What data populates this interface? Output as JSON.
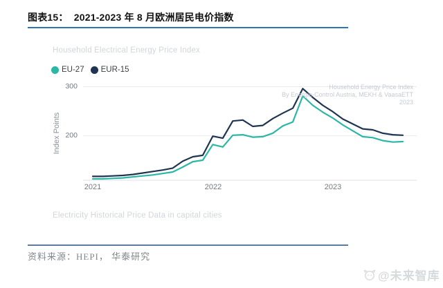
{
  "header": {
    "title": "图表15：  2021-2023 年 8 月欧洲居民电价指数"
  },
  "chart": {
    "title": "Household Electrical Energy Price Index",
    "caption": "Electricity Historical Price Data in capital cities",
    "watermark": {
      "line1": "Household Energy Price Index",
      "line2": "By Energie-Control Austria, MEKH & VaasaETT",
      "line3": "2023"
    }
  },
  "chart_data": {
    "type": "line",
    "title": "Household Electrical Energy Price Index",
    "xlabel": "",
    "ylabel": "Index Points",
    "x": [
      "2021-01",
      "2021-02",
      "2021-03",
      "2021-04",
      "2021-05",
      "2021-06",
      "2021-07",
      "2021-08",
      "2021-09",
      "2021-10",
      "2021-11",
      "2021-12",
      "2022-01",
      "2022-02",
      "2022-03",
      "2022-04",
      "2022-05",
      "2022-06",
      "2022-07",
      "2022-08",
      "2022-09",
      "2022-10",
      "2022-11",
      "2022-12",
      "2023-01",
      "2023-02",
      "2023-03",
      "2023-04",
      "2023-05",
      "2023-06",
      "2023-07",
      "2023-08"
    ],
    "x_tick_labels": [
      "2021",
      "2022",
      "2023"
    ],
    "y_tick_labels": [
      "300",
      "200"
    ],
    "y_ticks": [
      300,
      200
    ],
    "ylim": [
      105,
      310
    ],
    "grid": "horizontal",
    "legend_position": "top-left",
    "series": [
      {
        "name": "EU-27",
        "color": "#2bb6a5",
        "values": [
          112,
          112,
          113,
          114,
          116,
          118,
          120,
          123,
          126,
          136,
          147,
          150,
          182,
          177,
          201,
          202,
          197,
          198,
          205,
          220,
          228,
          281,
          262,
          248,
          236,
          222,
          210,
          198,
          196,
          190,
          187,
          188
        ]
      },
      {
        "name": "EUR-15",
        "color": "#1e3450",
        "values": [
          117,
          117,
          118,
          119,
          121,
          124,
          127,
          130,
          134,
          148,
          157,
          160,
          199,
          195,
          230,
          232,
          219,
          221,
          235,
          246,
          256,
          296,
          278,
          262,
          249,
          234,
          224,
          214,
          212,
          205,
          202,
          201
        ]
      }
    ]
  },
  "footer": {
    "source": "资料来源：HEPI， 华泰研究"
  },
  "watermark": {
    "text": "@未来智库"
  },
  "colors": {
    "header_underline": "#2e74b5",
    "footer_rule": "#5d7a9c",
    "gridline": "#e9ebee",
    "axis_line": "#dfe2e5",
    "series_eu27": "#2bb6a5",
    "series_eur15": "#1e3450"
  }
}
